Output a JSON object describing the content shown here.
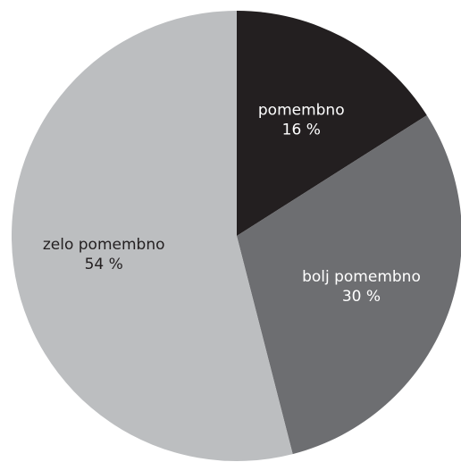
{
  "chart_data": {
    "type": "pie",
    "start_angle_deg": 0,
    "direction": "clockwise",
    "slices": [
      {
        "label": "pomembno",
        "value_label": "16 %",
        "value": 16,
        "color": "#231f20",
        "text_color": "#ffffff"
      },
      {
        "label": "bolj pomembno",
        "value_label": "30 %",
        "value": 30,
        "color": "#6d6e71",
        "text_color": "#ffffff"
      },
      {
        "label": "zelo pomembno",
        "value_label": "54 %",
        "value": 54,
        "color": "#bcbec0",
        "text_color": "#231f20"
      }
    ]
  }
}
